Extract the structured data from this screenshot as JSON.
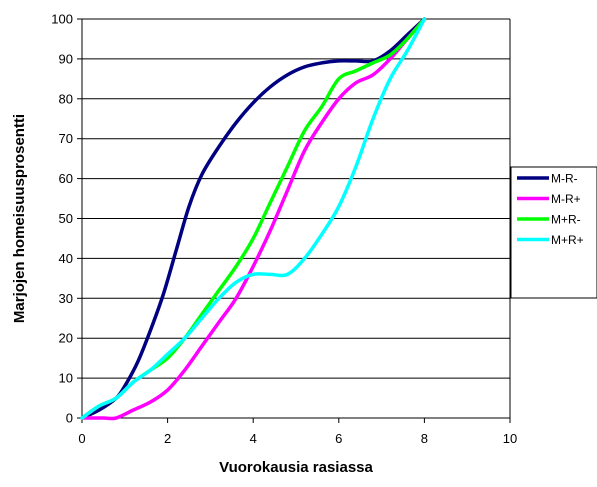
{
  "chart_data": {
    "type": "line",
    "title": "",
    "xlabel": "Vuorokausia rasiassa",
    "ylabel": "Marjojen homeisuusprosentti",
    "xlim": [
      0,
      10
    ],
    "ylim": [
      0,
      100
    ],
    "x_ticks": [
      "0",
      "2",
      "4",
      "6",
      "8",
      "10"
    ],
    "y_ticks": [
      "0",
      "10",
      "20",
      "30",
      "40",
      "50",
      "60",
      "70",
      "80",
      "90",
      "100"
    ],
    "grid": "horizontal",
    "legend_position": "right",
    "series": [
      {
        "name": "M-R-",
        "color": "#000080",
        "x": [
          0,
          0.4,
          0.8,
          1.0,
          1.3,
          1.6,
          1.9,
          2.2,
          2.5,
          2.8,
          3.2,
          3.6,
          4.0,
          4.4,
          4.8,
          5.2,
          5.6,
          6.0,
          6.4,
          6.8,
          7.2,
          7.6,
          8.0
        ],
        "y": [
          0,
          2,
          5,
          8,
          14,
          22,
          31,
          42,
          53,
          61,
          68,
          74,
          79,
          83,
          86,
          88,
          89,
          89.5,
          89.5,
          89.5,
          92,
          96,
          100
        ]
      },
      {
        "name": "M-R+",
        "color": "#ff00ff",
        "x": [
          0,
          0.5,
          0.8,
          1.2,
          1.6,
          2.0,
          2.4,
          2.8,
          3.2,
          3.6,
          4.0,
          4.4,
          4.8,
          5.2,
          5.6,
          6.0,
          6.4,
          6.8,
          7.2,
          7.6,
          8.0
        ],
        "y": [
          0,
          0,
          0,
          2,
          4,
          7,
          12,
          18,
          24,
          30,
          38,
          47,
          57,
          67,
          74,
          80,
          84,
          86,
          90,
          95,
          100
        ]
      },
      {
        "name": "M+R-",
        "color": "#00ff00",
        "x": [
          0,
          0.4,
          0.8,
          1.2,
          1.6,
          2.0,
          2.4,
          2.8,
          3.2,
          3.6,
          4.0,
          4.4,
          4.8,
          5.2,
          5.6,
          6.0,
          6.4,
          6.8,
          7.2,
          7.6,
          8.0
        ],
        "y": [
          0,
          3,
          5,
          9,
          12,
          15,
          20,
          26,
          32,
          38,
          45,
          54,
          63,
          72,
          78,
          85,
          87,
          89,
          91,
          95,
          100
        ]
      },
      {
        "name": "M+R+",
        "color": "#00ffff",
        "x": [
          0,
          0.4,
          0.8,
          1.2,
          1.6,
          2.0,
          2.4,
          2.8,
          3.2,
          3.6,
          4.0,
          4.4,
          4.8,
          5.2,
          5.6,
          6.0,
          6.4,
          6.8,
          7.2,
          7.6,
          8.0
        ],
        "y": [
          0,
          3,
          5,
          9,
          12,
          16,
          20,
          25,
          30,
          34,
          36,
          36,
          36,
          40,
          46,
          53,
          63,
          75,
          85,
          92,
          100
        ]
      }
    ]
  }
}
